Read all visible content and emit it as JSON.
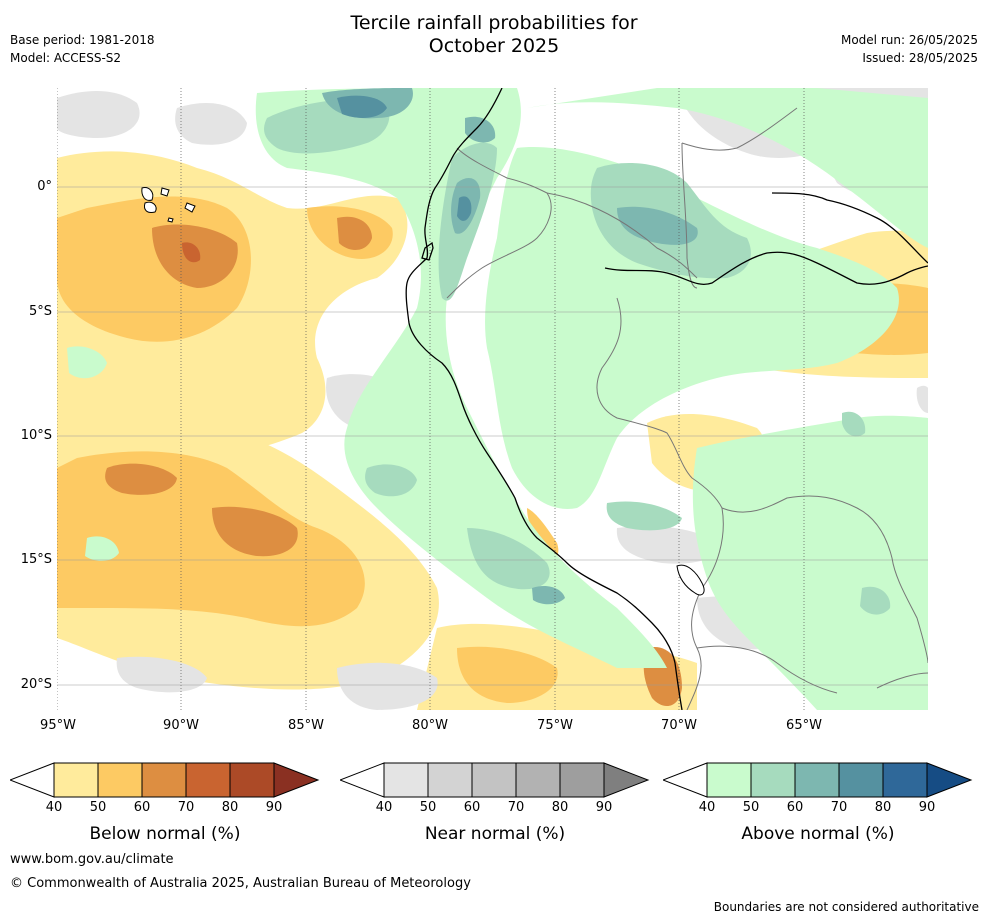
{
  "header": {
    "title_line1": "Tercile rainfall probabilities for",
    "title_line2": "October 2025",
    "base_period": "Base period: 1981-2018",
    "model": "Model: ACCESS-S2",
    "model_run": "Model run: 26/05/2025",
    "issued": "Issued: 28/05/2025"
  },
  "map": {
    "lon_ticks": [
      "95°W",
      "90°W",
      "85°W",
      "80°W",
      "75°W",
      "70°W",
      "65°W"
    ],
    "lat_ticks": [
      "0°",
      "5°S",
      "10°S",
      "15°S",
      "20°S"
    ]
  },
  "colorbars": [
    {
      "name": "below",
      "title": "Below normal (%)",
      "labels": [
        "40",
        "50",
        "60",
        "70",
        "80",
        "90"
      ],
      "colors": [
        "#ffffff",
        "#ffeb9c",
        "#fdca63",
        "#dd8e41",
        "#c96430",
        "#ac4a27",
        "#8a3022"
      ]
    },
    {
      "name": "near",
      "title": "Near normal (%)",
      "labels": [
        "40",
        "50",
        "60",
        "70",
        "80",
        "90"
      ],
      "colors": [
        "#ffffff",
        "#e4e4e4",
        "#d3d3d3",
        "#c3c3c3",
        "#b2b2b2",
        "#9e9e9e",
        "#7f7f7f"
      ]
    },
    {
      "name": "above",
      "title": "Above normal (%)",
      "labels": [
        "40",
        "50",
        "60",
        "70",
        "80",
        "90"
      ],
      "colors": [
        "#ffffff",
        "#c9fbcd",
        "#a6dbbe",
        "#7db7b0",
        "#5591a0",
        "#2f6899",
        "#164c84"
      ]
    }
  ],
  "footer": {
    "url": "www.bom.gov.au/climate",
    "copyright": "© Commonwealth of Australia 2025, Australian Bureau of Meteorology",
    "disclaimer": "Boundaries are not considered authoritative"
  }
}
